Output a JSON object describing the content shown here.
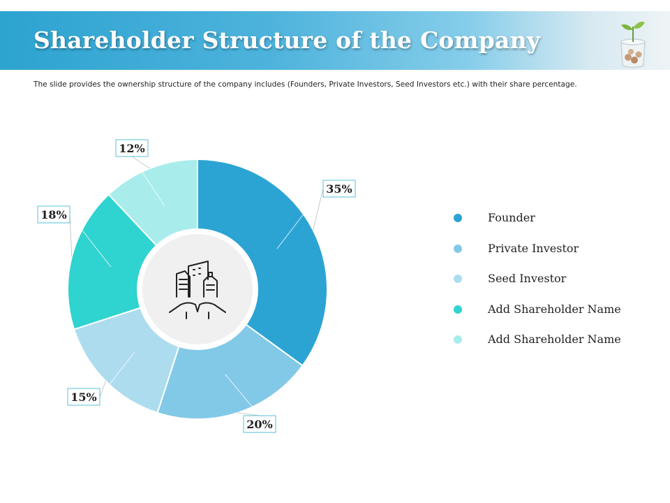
{
  "header": {
    "title": "Shareholder Structure of the Company",
    "subtitle": "The slide provides the ownership structure of the company includes (Founders, Private Investors, Seed Investors etc.) with their share percentage."
  },
  "chart_data": {
    "type": "pie",
    "donut": true,
    "title": "",
    "center_icon": "city-buildings-in-hands-icon",
    "legend_position": "right",
    "series": [
      {
        "name": "Founder",
        "value": 35,
        "label": "35%",
        "color": "#2ba4d4"
      },
      {
        "name": "Private Investor",
        "value": 20,
        "label": "20%",
        "color": "#82c9e7"
      },
      {
        "name": "Seed Investor",
        "value": 15,
        "label": "15%",
        "color": "#addcef"
      },
      {
        "name": "Add Shareholder Name",
        "value": 18,
        "label": "18%",
        "color": "#2fd3cf"
      },
      {
        "name": "Add Shareholder Name",
        "value": 12,
        "label": "12%",
        "color": "#a9ecec"
      }
    ]
  },
  "colors": {
    "header_start": "#2da3d0",
    "label_border": "#56c2d8",
    "center_fill": "#f0f0f0"
  }
}
